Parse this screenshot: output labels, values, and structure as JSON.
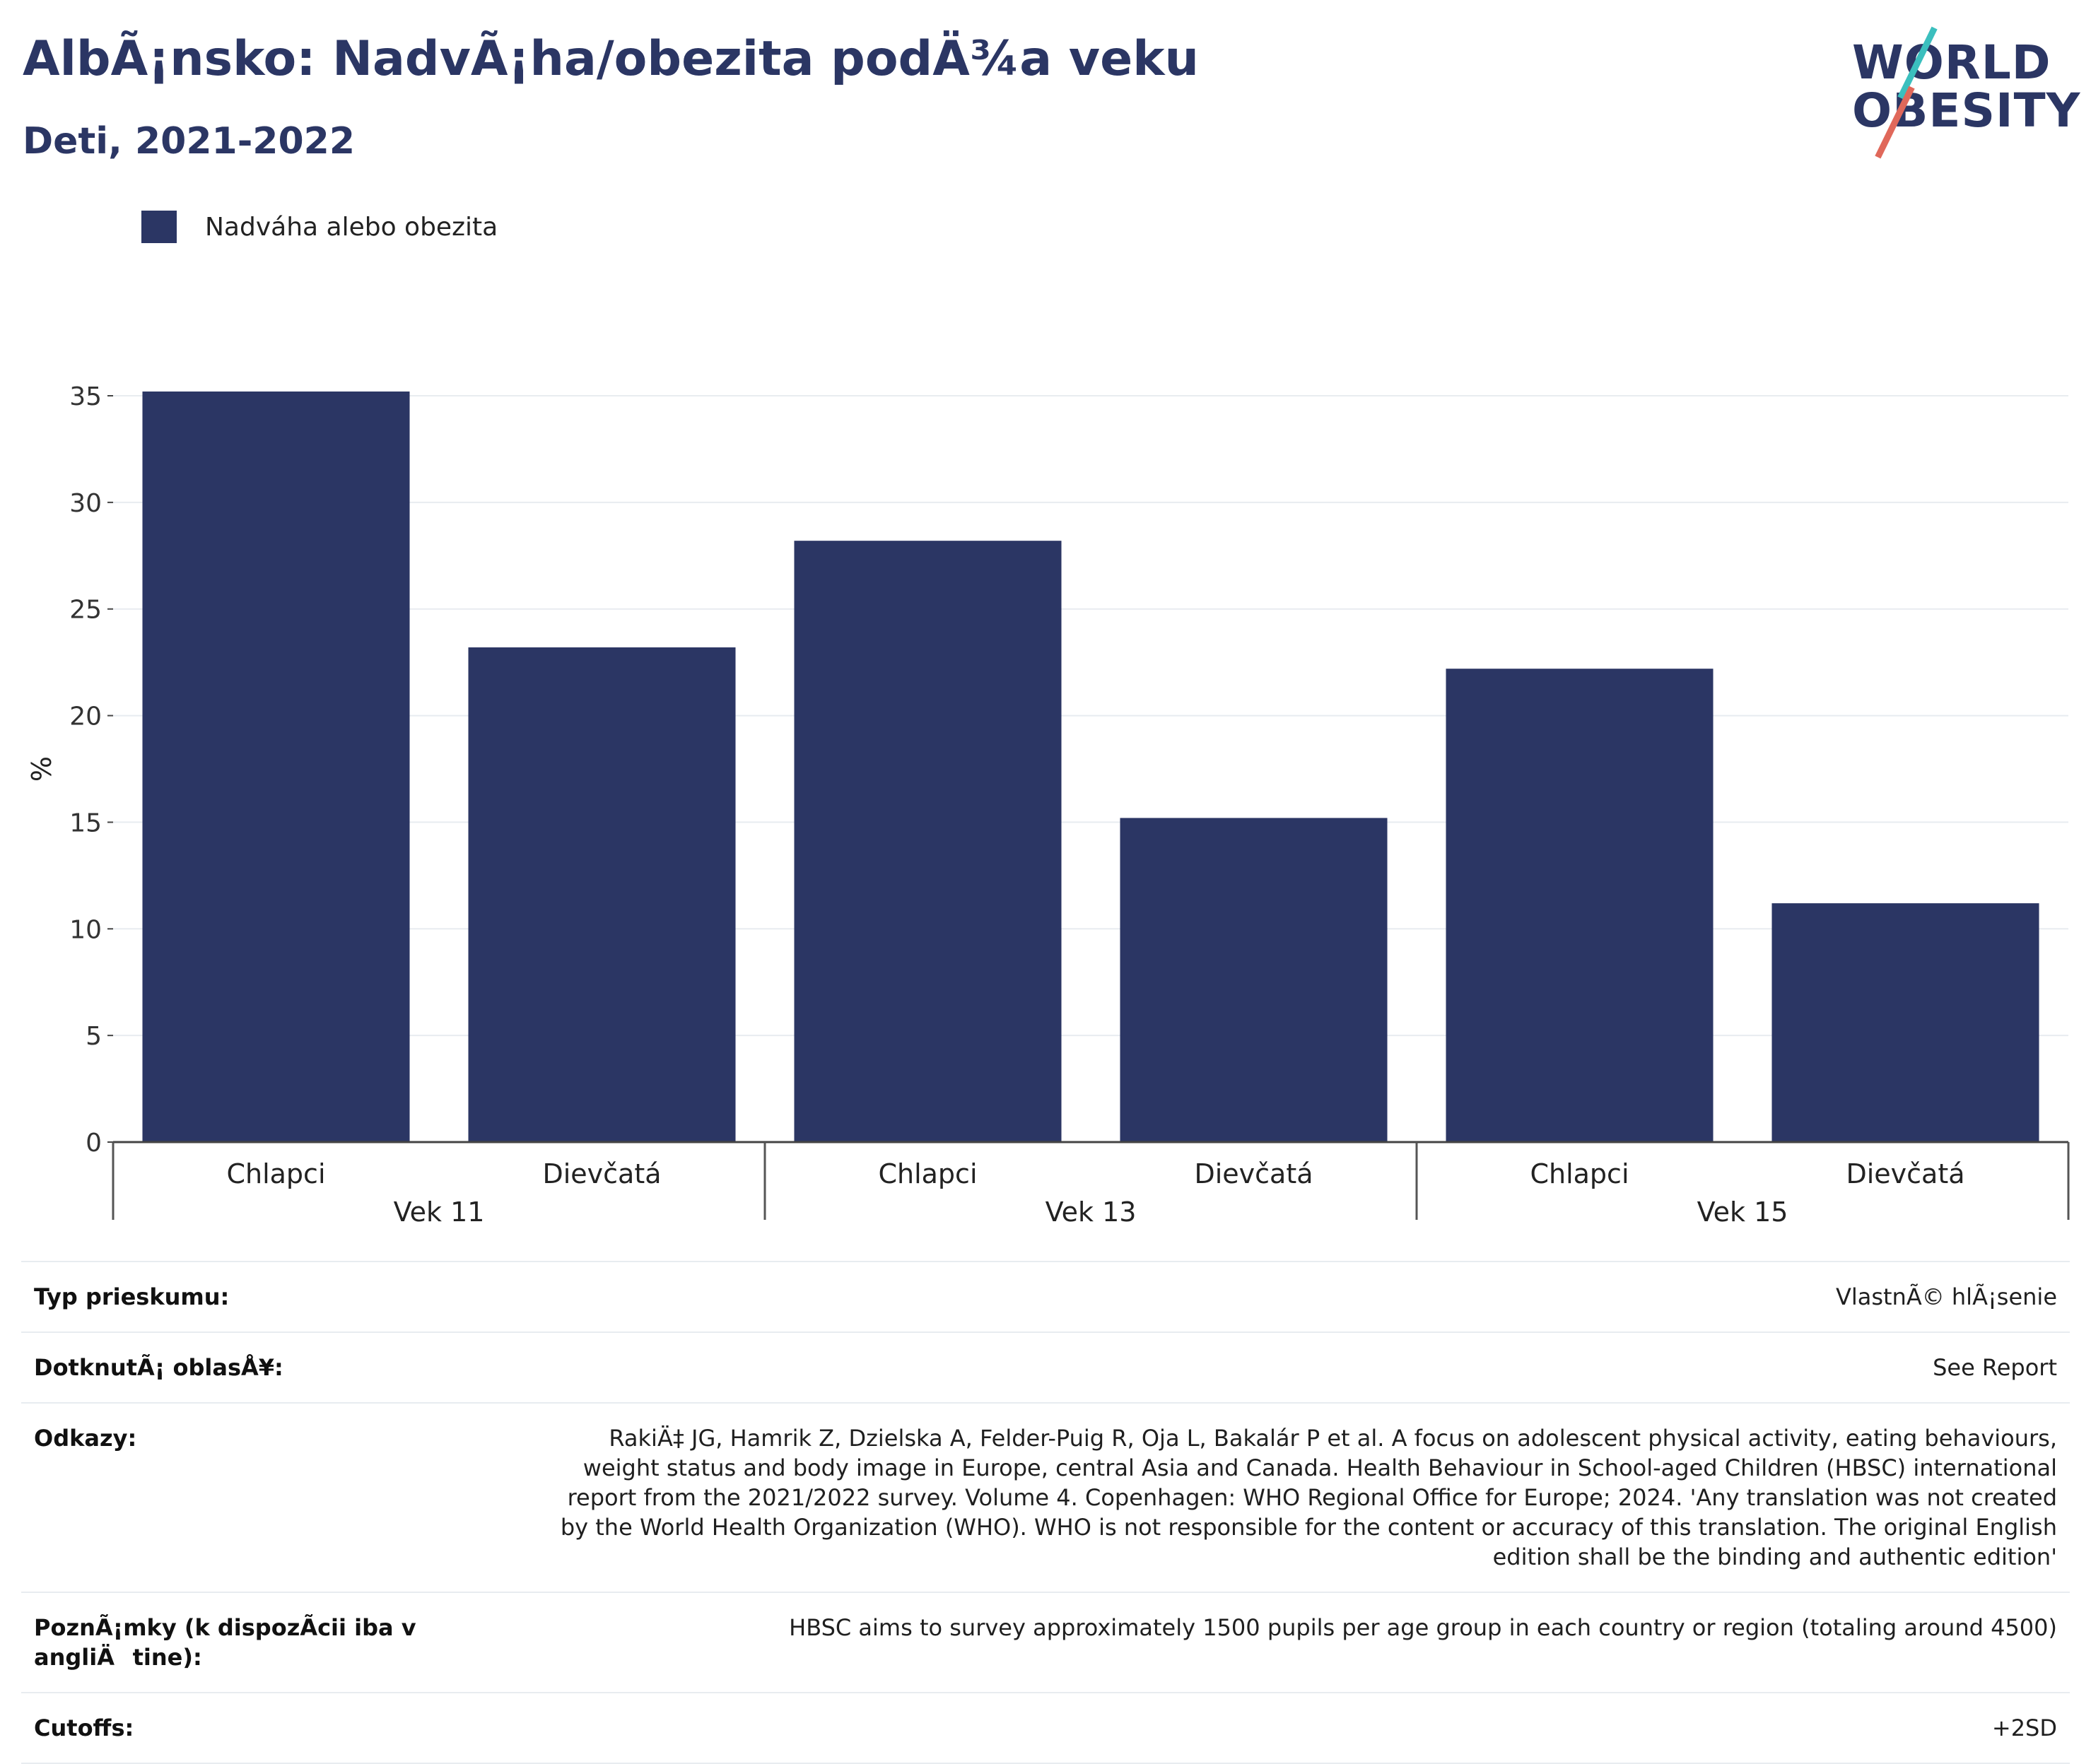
{
  "header": {
    "title": "AlbÃ¡nsko: NadvÃ¡ha/obezita podÄ¾a veku",
    "subtitle": "Deti, 2021-2022"
  },
  "logo": {
    "line1": "WORLD",
    "line2": "OBESITY"
  },
  "legend": {
    "label": "Nadváha alebo obezita",
    "color": "#2b3664"
  },
  "chart_data": {
    "type": "bar",
    "groups": [
      "Vek 11",
      "Vek 13",
      "Vek 15"
    ],
    "categories": [
      "Chlapci",
      "Dievčatá",
      "Chlapci",
      "Dievčatá",
      "Chlapci",
      "Dievčatá"
    ],
    "series": [
      {
        "name": "Nadváha alebo obezita",
        "values": [
          35.2,
          23.2,
          28.2,
          15.2,
          22.2,
          11.2
        ]
      }
    ],
    "ylabel": "%",
    "ylim": [
      0,
      35
    ],
    "yticks": [
      0,
      5,
      10,
      15,
      20,
      25,
      30,
      35
    ],
    "grid": true,
    "legend_position": "top-left",
    "bar_color": "#2b3664"
  },
  "info": [
    {
      "label": "Typ prieskumu:",
      "value": "VlastnÃ© hlÃ¡senie"
    },
    {
      "label": "DotknutÃ¡ oblasÅ¥:",
      "value": "See Report"
    },
    {
      "label": "Odkazy:",
      "value": "RakiÄ‡ JG, Hamrik Z, Dzielska A, Felder-Puig R, Oja L, Bakalár P et al. A focus on adolescent physical activity, eating behaviours, weight status and body image in Europe, central Asia and Canada. Health Behaviour in School-aged Children (HBSC) international report from the 2021/2022 survey. Volume 4. Copenhagen: WHO Regional Office for Europe; 2024. 'Any translation was not created by the World Health Organization (WHO). WHO is not responsible for the content or accuracy of this translation. The original English edition shall be the binding and authentic edition'"
    },
    {
      "label": "PoznÃ¡mky (k dispozÃcii iba v angliÄtine):",
      "value": "HBSC aims to survey approximately 1500 pupils per age group in each country or region (totaling around 4500)"
    },
    {
      "label": "Cutoffs:",
      "value": "+2SD"
    }
  ]
}
